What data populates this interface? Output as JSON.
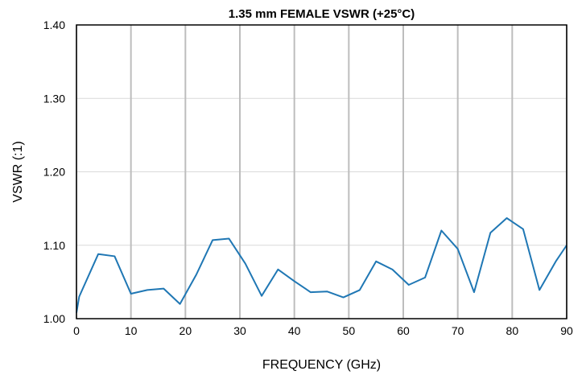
{
  "chart_data": {
    "type": "line",
    "title": "1.35 mm FEMALE VSWR (+25°C)",
    "xlabel": "FREQUENCY  (GHz)",
    "ylabel": "VSWR (:1)",
    "xlim": [
      0,
      90
    ],
    "ylim": [
      1.0,
      1.4
    ],
    "x_ticks": [
      "0",
      "10",
      "20",
      "30",
      "40",
      "50",
      "60",
      "70",
      "80",
      "90"
    ],
    "y_ticks": [
      "1.00",
      "1.10",
      "1.20",
      "1.30",
      "1.40"
    ],
    "grid": {
      "vertical": true,
      "horizontal": true
    },
    "colors": {
      "line": "#1f77b4",
      "vgrid": "#bdbdbd",
      "hgrid": "#d9d9d9",
      "axis": "#000000"
    },
    "series": [
      {
        "x": [
          0,
          0.5,
          4,
          7,
          10,
          13,
          16,
          19,
          22,
          25,
          28,
          31,
          34,
          37,
          40,
          43,
          46,
          49,
          52,
          55,
          58,
          61,
          64,
          67,
          70,
          73,
          76,
          79,
          82,
          85,
          88,
          90
        ],
        "values": [
          1.008,
          1.03,
          1.088,
          1.085,
          1.034,
          1.039,
          1.041,
          1.02,
          1.06,
          1.107,
          1.109,
          1.075,
          1.031,
          1.067,
          1.051,
          1.036,
          1.037,
          1.029,
          1.039,
          1.078,
          1.067,
          1.046,
          1.056,
          1.12,
          1.095,
          1.036,
          1.117,
          1.137,
          1.122,
          1.039,
          1.078,
          1.1
        ]
      }
    ]
  }
}
